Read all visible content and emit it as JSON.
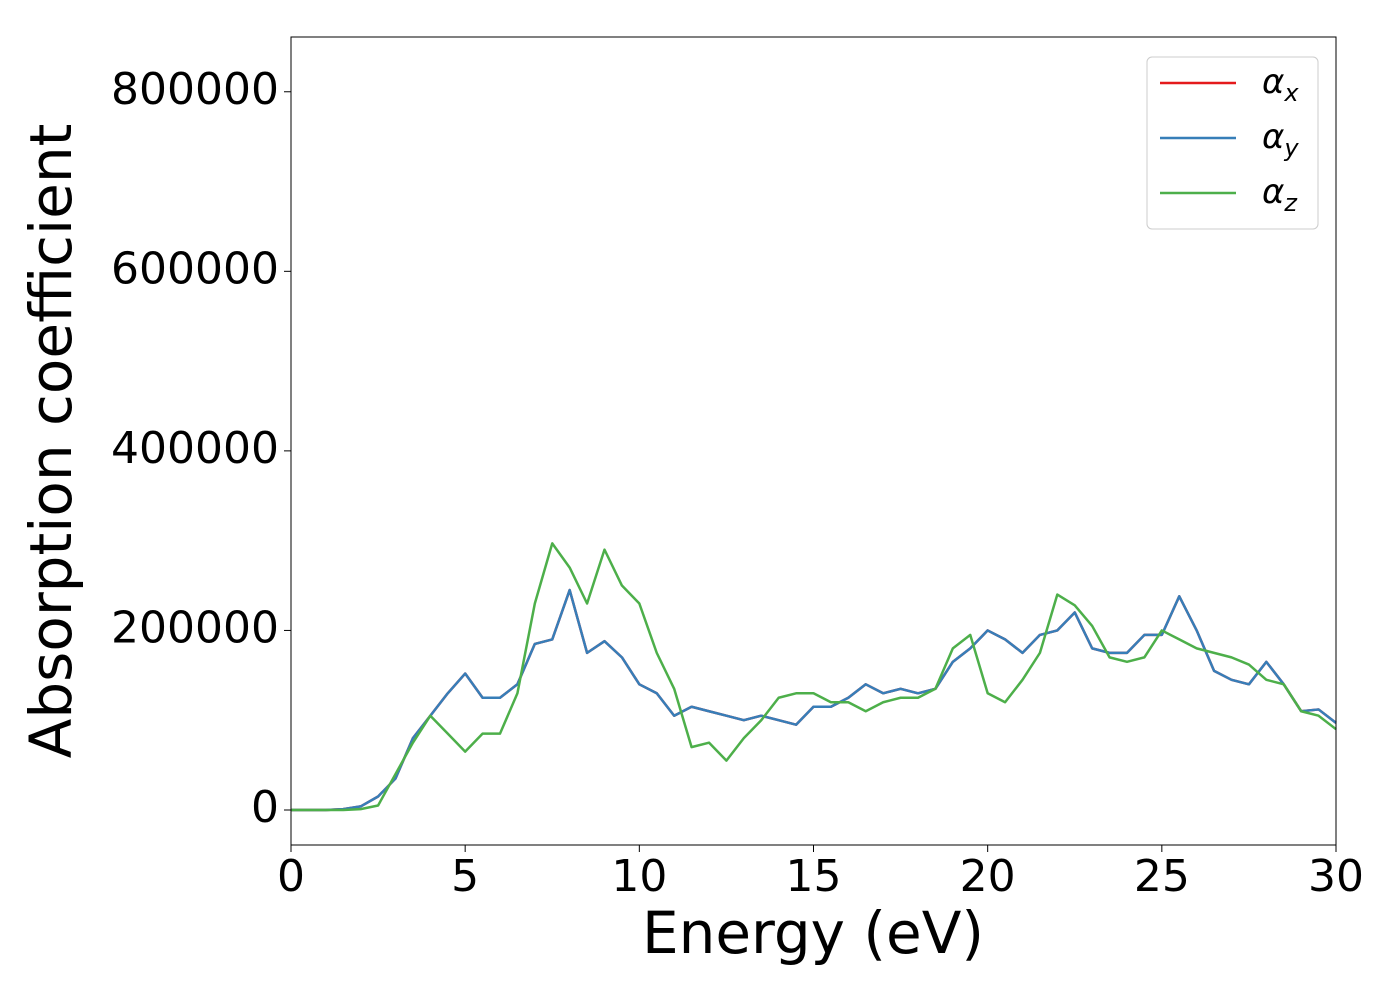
{
  "chart_data": {
    "type": "line",
    "xlabel": "Energy (eV)",
    "ylabel": "Absorption coefficient",
    "x": [
      0,
      0.5,
      1,
      1.5,
      2,
      2.5,
      3,
      3.5,
      4,
      4.5,
      5,
      5.5,
      6,
      6.5,
      7,
      7.5,
      8,
      8.5,
      9,
      9.5,
      10,
      10.5,
      11,
      11.5,
      12,
      12.5,
      13,
      13.5,
      14,
      14.5,
      15,
      15.5,
      16,
      16.5,
      17,
      17.5,
      18,
      18.5,
      19,
      19.5,
      20,
      20.5,
      21,
      21.5,
      22,
      22.5,
      23,
      23.5,
      24,
      24.5,
      25,
      25.5,
      26,
      26.5,
      27,
      27.5,
      28,
      28.5,
      29,
      29.5,
      30
    ],
    "series": [
      {
        "name": "αx",
        "color": "#e41a1c",
        "values": [
          0,
          0,
          0,
          1000,
          4000,
          15000,
          35000,
          80000,
          105000,
          130000,
          152000,
          125000,
          125000,
          140000,
          185000,
          190000,
          245000,
          175000,
          188000,
          170000,
          140000,
          130000,
          105000,
          115000,
          110000,
          105000,
          100000,
          105000,
          100000,
          95000,
          115000,
          115000,
          125000,
          140000,
          130000,
          135000,
          130000,
          135000,
          165000,
          180000,
          200000,
          190000,
          175000,
          195000,
          200000,
          220000,
          180000,
          175000,
          175000,
          195000,
          195000,
          238000,
          200000,
          155000,
          145000,
          140000,
          165000,
          140000,
          110000,
          112000,
          97000
        ]
      },
      {
        "name": "αy",
        "color": "#377eb8",
        "values": [
          0,
          0,
          0,
          1000,
          4000,
          15000,
          35000,
          80000,
          105000,
          130000,
          152000,
          125000,
          125000,
          140000,
          185000,
          190000,
          245000,
          175000,
          188000,
          170000,
          140000,
          130000,
          105000,
          115000,
          110000,
          105000,
          100000,
          105000,
          100000,
          95000,
          115000,
          115000,
          125000,
          140000,
          130000,
          135000,
          130000,
          135000,
          165000,
          180000,
          200000,
          190000,
          175000,
          195000,
          200000,
          220000,
          180000,
          175000,
          175000,
          195000,
          195000,
          238000,
          200000,
          155000,
          145000,
          140000,
          165000,
          140000,
          110000,
          112000,
          97000
        ]
      },
      {
        "name": "αz",
        "color": "#4daf4a",
        "values": [
          0,
          0,
          0,
          0,
          1000,
          5000,
          40000,
          75000,
          105000,
          85000,
          65000,
          85000,
          85000,
          130000,
          230000,
          297000,
          270000,
          230000,
          290000,
          250000,
          230000,
          175000,
          135000,
          70000,
          75000,
          55000,
          80000,
          100000,
          125000,
          130000,
          130000,
          120000,
          120000,
          110000,
          120000,
          125000,
          125000,
          135000,
          180000,
          195000,
          130000,
          120000,
          145000,
          175000,
          240000,
          228000,
          205000,
          170000,
          165000,
          170000,
          200000,
          190000,
          180000,
          175000,
          170000,
          162000,
          145000,
          140000,
          110000,
          105000,
          90000
        ]
      }
    ],
    "xlim": [
      0,
      30
    ],
    "xticks": [
      0,
      5,
      10,
      15,
      20,
      25,
      30
    ],
    "ylim": [
      -39000,
      861000
    ],
    "yticks": [
      0,
      200000,
      400000,
      600000,
      800000
    ],
    "grid": false,
    "legend": "upper right"
  }
}
